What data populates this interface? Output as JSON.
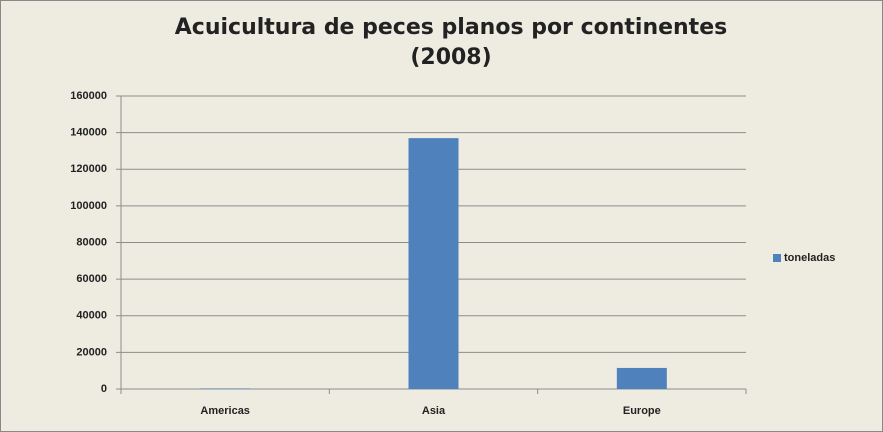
{
  "chart_data": {
    "type": "bar",
    "title": "Acuicultura de peces planos por continentes (2008)",
    "categories": [
      "Americas",
      "Asia",
      "Europe"
    ],
    "series": [
      {
        "name": "toneladas",
        "color": "#4f81bd",
        "values": [
          300,
          137000,
          11500
        ]
      }
    ],
    "ylim": [
      0,
      160000
    ],
    "yticks": [
      0,
      20000,
      40000,
      60000,
      80000,
      100000,
      120000,
      140000,
      160000
    ],
    "grid": true,
    "legend": "right"
  }
}
